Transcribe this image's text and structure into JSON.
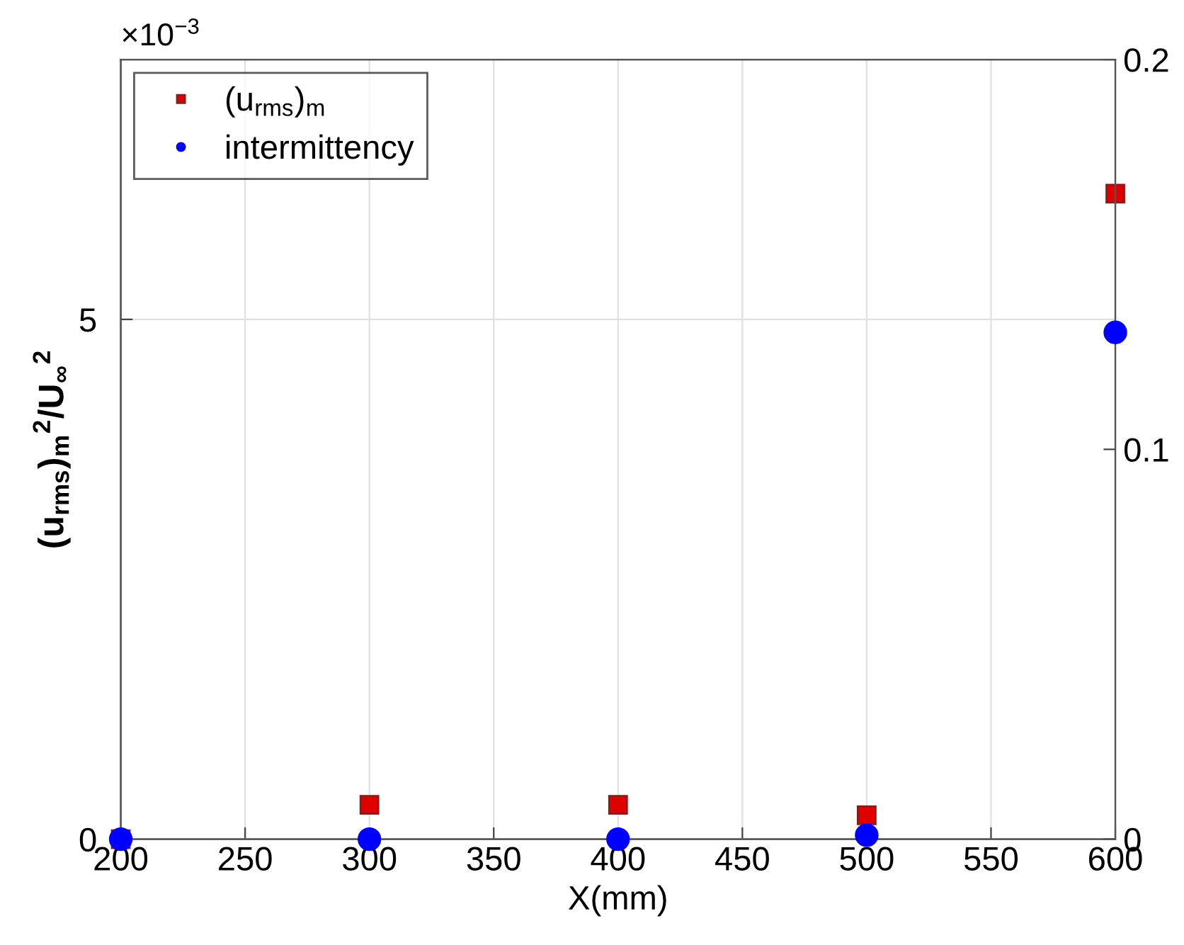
{
  "chart_data": {
    "type": "scatter",
    "xlabel": "X(mm)",
    "ylabel": "(u$_{rms}$)$_{m}$$^{2}$/U$_{∞}$$^{2}$",
    "x": [
      200,
      300,
      400,
      500,
      600
    ],
    "series": [
      {
        "name": "(u$_{rms}$)$_{m}$",
        "color": "#e00000",
        "marker": "square",
        "values": [
          0,
          0.33,
          0.33,
          0.23,
          6.21
        ]
      },
      {
        "name": "intermittency",
        "color": "#0000ff",
        "marker": "circle",
        "axis": "y2",
        "values": [
          0,
          0,
          0,
          0.001,
          0.13
        ]
      }
    ],
    "xlim": [
      200,
      600
    ],
    "xticks": [
      200,
      250,
      300,
      350,
      400,
      450,
      500,
      550,
      600
    ],
    "ylim": [
      0,
      7.5
    ],
    "yticks": [
      0,
      5
    ],
    "y2lim": [
      0,
      0.2
    ],
    "y2ticks": [
      0,
      0.1,
      0.2
    ],
    "annotations": [
      "×10$^{−3}$"
    ],
    "grid": true,
    "legend": "top left"
  }
}
